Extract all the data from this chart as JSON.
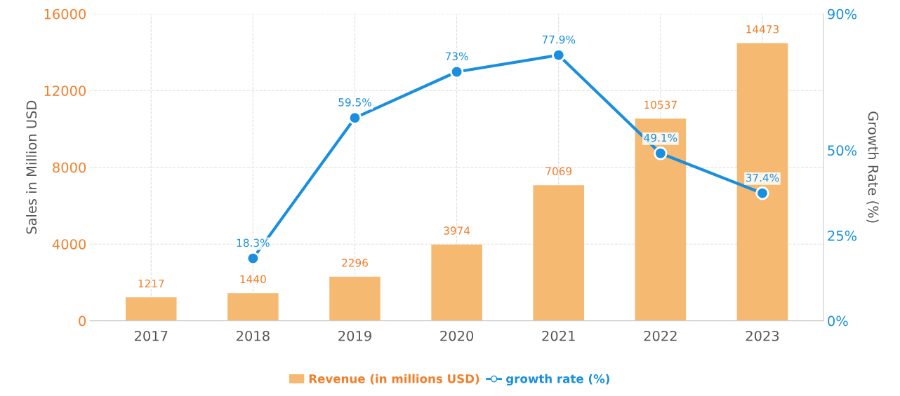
{
  "chart_data": {
    "type": "bar",
    "categories": [
      "2017",
      "2018",
      "2019",
      "2020",
      "2021",
      "2022",
      "2023"
    ],
    "ylabel": "Sales in Million USD",
    "y2label": "Growth Rate (%)",
    "ylim": [
      0,
      16000
    ],
    "yticks": [
      0,
      4000,
      8000,
      12000,
      16000
    ],
    "y2lim": [
      0,
      90
    ],
    "y2ticks": [
      {
        "value": 0,
        "label": "0%"
      },
      {
        "value": 25,
        "label": "25%"
      },
      {
        "value": 50,
        "label": "50%"
      },
      {
        "value": 90,
        "label": "90%"
      }
    ],
    "grid": true,
    "legend": "bottom",
    "line_style": "solid",
    "marker": "circle",
    "series": [
      {
        "name": "Revenue (in millions USD)",
        "color": "#f5b971",
        "values": [
          1217,
          1440,
          2296,
          3974,
          7069,
          10537,
          14473
        ],
        "value_labels": [
          "1217",
          "1440",
          "2296",
          "3974",
          "7069",
          "10537",
          "14473"
        ]
      },
      {
        "name": "growth rate (%)",
        "type": "line",
        "axis": "y2",
        "color": "#1a8fdd",
        "values": [
          null,
          18.3,
          59.5,
          73,
          77.9,
          49.1,
          37.4
        ],
        "value_labels": [
          null,
          "18.3%",
          "59.5%",
          "73%",
          "77.9%",
          "49.1%",
          "37.4%"
        ]
      }
    ]
  }
}
